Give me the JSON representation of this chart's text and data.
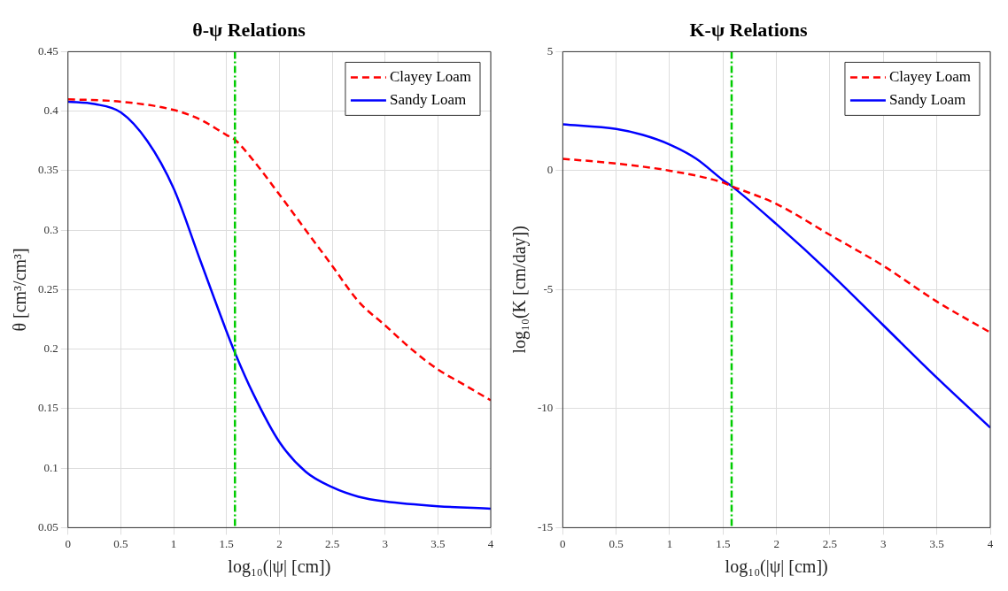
{
  "chart_data": [
    {
      "type": "line",
      "title": "θ-ψ Relations",
      "xlabel": "log₁₀(|ψ| [cm])",
      "ylabel": "θ [cm³/cm³]",
      "xlim": [
        0,
        4
      ],
      "xticks": [
        0,
        0.5,
        1,
        1.5,
        2,
        2.5,
        3,
        3.5,
        4
      ],
      "ylim": [
        0.05,
        0.45
      ],
      "yticks": [
        0.05,
        0.1,
        0.15,
        0.2,
        0.25,
        0.3,
        0.35,
        0.4,
        0.45
      ],
      "grid": true,
      "legend": "top right",
      "marker": "none",
      "ref_lines": [
        {
          "axis": "x",
          "value": 1.58,
          "color": "#00cc00",
          "line_style": "dashed"
        }
      ],
      "series": [
        {
          "name": "Clayey Loam",
          "color": "#ff0000",
          "line_style": "dashed",
          "x": [
            0,
            0.5,
            1,
            1.25,
            1.5,
            1.58,
            1.75,
            2,
            2.25,
            2.5,
            2.75,
            3,
            3.25,
            3.5,
            3.75,
            4
          ],
          "values": [
            0.41,
            0.408,
            0.401,
            0.393,
            0.38,
            0.376,
            0.359,
            0.33,
            0.3,
            0.27,
            0.24,
            0.22,
            0.2,
            0.183,
            0.17,
            0.157
          ]
        },
        {
          "name": "Sandy Loam",
          "color": "#0000ff",
          "line_style": "solid",
          "x": [
            0,
            0.25,
            0.5,
            0.75,
            1,
            1.25,
            1.5,
            1.58,
            1.75,
            2,
            2.25,
            2.5,
            2.75,
            3,
            3.5,
            4
          ],
          "values": [
            0.408,
            0.406,
            0.399,
            0.375,
            0.335,
            0.275,
            0.215,
            0.197,
            0.163,
            0.122,
            0.097,
            0.084,
            0.076,
            0.072,
            0.068,
            0.066
          ]
        }
      ]
    },
    {
      "type": "line",
      "title": "K-ψ Relations",
      "xlabel": "log₁₀(|ψ| [cm])",
      "ylabel": "log₁₀(K [cm/day])",
      "xlim": [
        0,
        4
      ],
      "xticks": [
        0,
        0.5,
        1,
        1.5,
        2,
        2.5,
        3,
        3.5,
        4
      ],
      "ylim": [
        -15,
        5
      ],
      "yticks": [
        -15,
        -10,
        -5,
        0,
        5
      ],
      "grid": true,
      "legend": "top right",
      "marker": "none",
      "ref_lines": [
        {
          "axis": "x",
          "value": 1.58,
          "color": "#00cc00",
          "line_style": "dashed"
        }
      ],
      "series": [
        {
          "name": "Clayey Loam",
          "color": "#ff0000",
          "line_style": "dashed",
          "x": [
            0,
            0.5,
            1,
            1.5,
            1.58,
            2,
            2.5,
            3,
            3.5,
            4
          ],
          "values": [
            0.5,
            0.3,
            0.0,
            -0.5,
            -0.65,
            -1.4,
            -2.7,
            -4.0,
            -5.5,
            -6.8
          ]
        },
        {
          "name": "Sandy Loam",
          "color": "#0000ff",
          "line_style": "solid",
          "x": [
            0,
            0.5,
            0.75,
            1,
            1.25,
            1.5,
            1.58,
            2,
            2.5,
            3,
            3.5,
            4
          ],
          "values": [
            1.95,
            1.75,
            1.5,
            1.1,
            0.5,
            -0.4,
            -0.65,
            -2.25,
            -4.3,
            -6.5,
            -8.7,
            -10.8
          ]
        }
      ]
    }
  ]
}
